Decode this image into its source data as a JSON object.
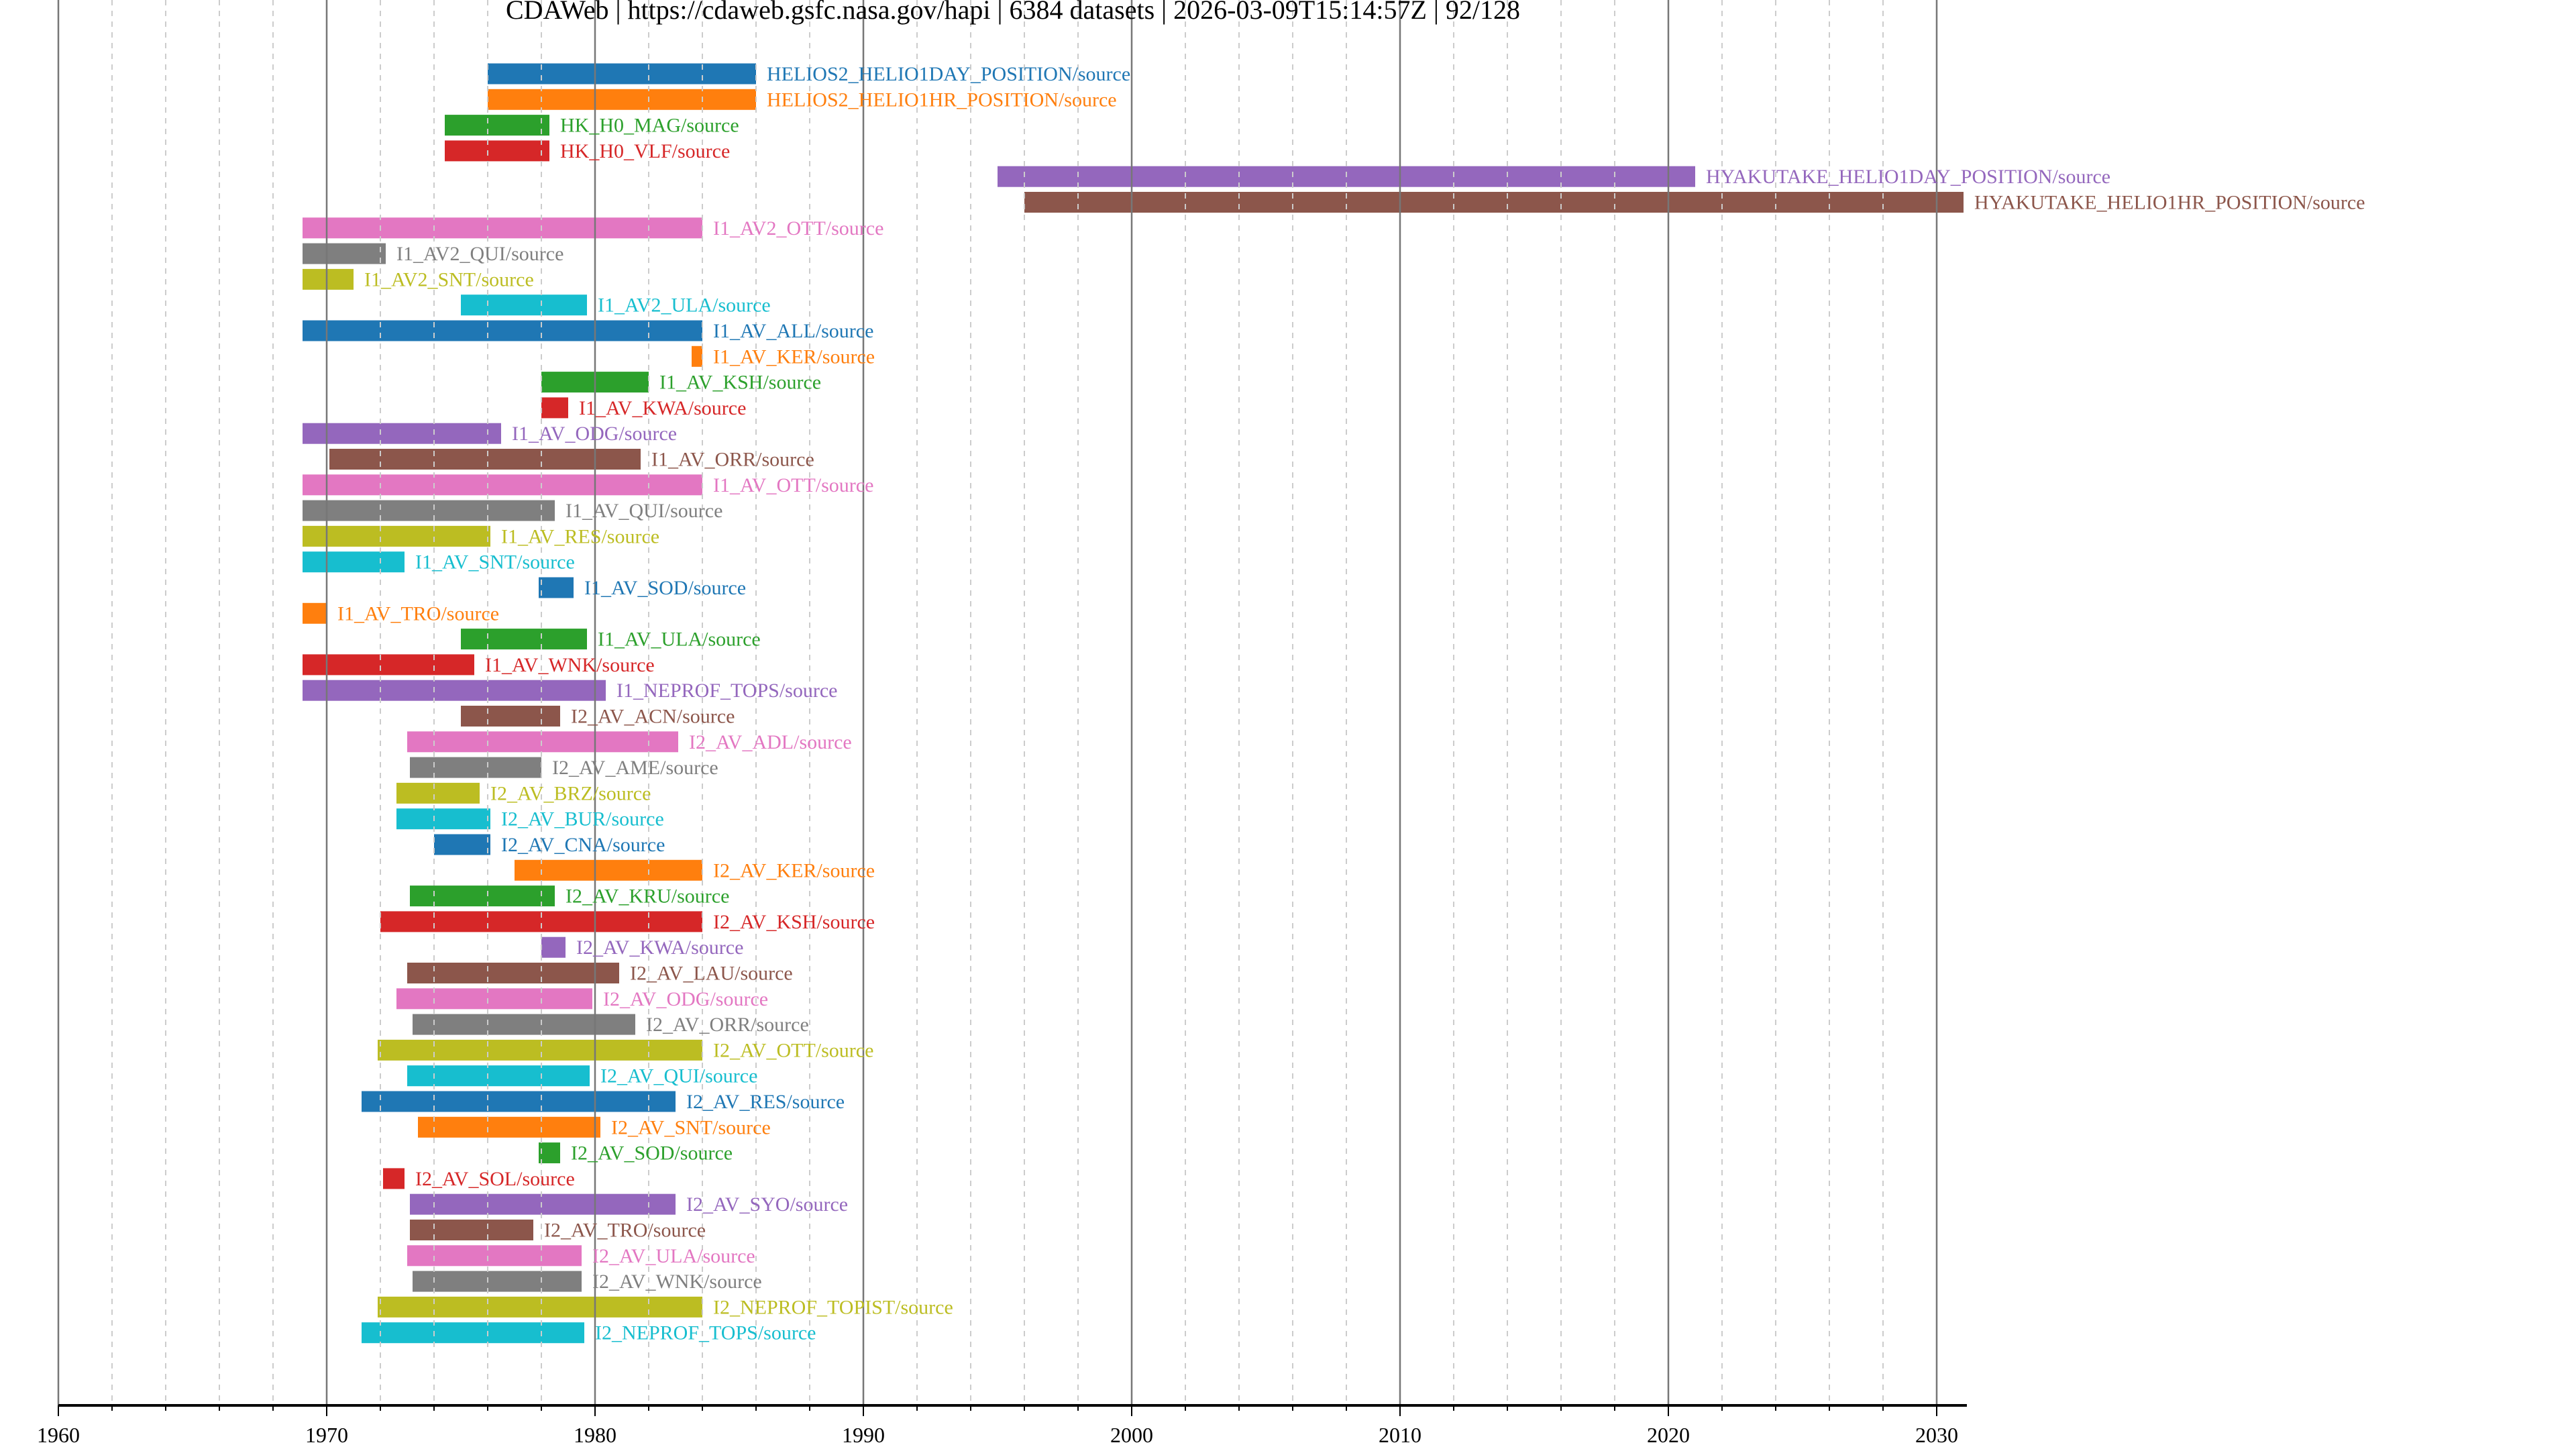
{
  "chart_data": {
    "type": "bar",
    "orientation": "horizontal-timeline",
    "title": "CDAWeb | https://cdaweb.gsfc.nasa.gov/hapi | 6384 datasets | 2026-03-09T15:14:57Z | 92/128",
    "xlabel": "",
    "ylabel": "",
    "xlim": [
      1960,
      2031
    ],
    "xticks": [
      "1960",
      "1970",
      "1980",
      "1990",
      "2000",
      "2010",
      "2020",
      "2030"
    ],
    "grid": true,
    "palette": [
      "#1f77b4",
      "#ff7f0e",
      "#2ca02c",
      "#d62728",
      "#9467bd",
      "#8c564b",
      "#e377c2",
      "#7f7f7f",
      "#bcbd22",
      "#17becf"
    ],
    "series": [
      {
        "name": "HELIOS2_HELIO1DAY_POSITION/source",
        "start": 1976.0,
        "end": 1986.0
      },
      {
        "name": "HELIOS2_HELIO1HR_POSITION/source",
        "start": 1976.0,
        "end": 1986.0
      },
      {
        "name": "HK_H0_MAG/source",
        "start": 1974.4,
        "end": 1978.3
      },
      {
        "name": "HK_H0_VLF/source",
        "start": 1974.4,
        "end": 1978.3
      },
      {
        "name": "HYAKUTAKE_HELIO1DAY_POSITION/source",
        "start": 1995.0,
        "end": 2021.0
      },
      {
        "name": "HYAKUTAKE_HELIO1HR_POSITION/source",
        "start": 1996.0,
        "end": 2031.0
      },
      {
        "name": "I1_AV2_OTT/source",
        "start": 1969.1,
        "end": 1984.0
      },
      {
        "name": "I1_AV2_QUI/source",
        "start": 1969.1,
        "end": 1972.2
      },
      {
        "name": "I1_AV2_SNT/source",
        "start": 1969.1,
        "end": 1971.0
      },
      {
        "name": "I1_AV2_ULA/source",
        "start": 1975.0,
        "end": 1979.7
      },
      {
        "name": "I1_AV_ALL/source",
        "start": 1969.1,
        "end": 1984.0
      },
      {
        "name": "I1_AV_KER/source",
        "start": 1983.6,
        "end": 1984.0
      },
      {
        "name": "I1_AV_KSH/source",
        "start": 1978.0,
        "end": 1982.0
      },
      {
        "name": "I1_AV_KWA/source",
        "start": 1978.0,
        "end": 1979.0
      },
      {
        "name": "I1_AV_ODG/source",
        "start": 1969.1,
        "end": 1976.5
      },
      {
        "name": "I1_AV_ORR/source",
        "start": 1970.1,
        "end": 1981.7
      },
      {
        "name": "I1_AV_OTT/source",
        "start": 1969.1,
        "end": 1984.0
      },
      {
        "name": "I1_AV_QUI/source",
        "start": 1969.1,
        "end": 1978.5
      },
      {
        "name": "I1_AV_RES/source",
        "start": 1969.1,
        "end": 1976.1
      },
      {
        "name": "I1_AV_SNT/source",
        "start": 1969.1,
        "end": 1972.9
      },
      {
        "name": "I1_AV_SOD/source",
        "start": 1977.9,
        "end": 1979.2
      },
      {
        "name": "I1_AV_TRO/source",
        "start": 1969.1,
        "end": 1970.0
      },
      {
        "name": "I1_AV_ULA/source",
        "start": 1975.0,
        "end": 1979.7
      },
      {
        "name": "I1_AV_WNK/source",
        "start": 1969.1,
        "end": 1975.5
      },
      {
        "name": "I1_NEPROF_TOPS/source",
        "start": 1969.1,
        "end": 1980.4
      },
      {
        "name": "I2_AV_ACN/source",
        "start": 1975.0,
        "end": 1978.7
      },
      {
        "name": "I2_AV_ADL/source",
        "start": 1973.0,
        "end": 1983.1
      },
      {
        "name": "I2_AV_AME/source",
        "start": 1973.1,
        "end": 1978.0
      },
      {
        "name": "I2_AV_BRZ/source",
        "start": 1972.6,
        "end": 1975.7
      },
      {
        "name": "I2_AV_BUR/source",
        "start": 1972.6,
        "end": 1976.1
      },
      {
        "name": "I2_AV_CNA/source",
        "start": 1974.0,
        "end": 1976.1
      },
      {
        "name": "I2_AV_KER/source",
        "start": 1977.0,
        "end": 1984.0
      },
      {
        "name": "I2_AV_KRU/source",
        "start": 1973.1,
        "end": 1978.5
      },
      {
        "name": "I2_AV_KSH/source",
        "start": 1972.0,
        "end": 1984.0
      },
      {
        "name": "I2_AV_KWA/source",
        "start": 1978.0,
        "end": 1978.9
      },
      {
        "name": "I2_AV_LAU/source",
        "start": 1973.0,
        "end": 1980.9
      },
      {
        "name": "I2_AV_ODG/source",
        "start": 1972.6,
        "end": 1979.9
      },
      {
        "name": "I2_AV_ORR/source",
        "start": 1973.2,
        "end": 1981.5
      },
      {
        "name": "I2_AV_OTT/source",
        "start": 1971.9,
        "end": 1984.0
      },
      {
        "name": "I2_AV_QUI/source",
        "start": 1973.0,
        "end": 1979.8
      },
      {
        "name": "I2_AV_RES/source",
        "start": 1971.3,
        "end": 1983.0
      },
      {
        "name": "I2_AV_SNT/source",
        "start": 1973.4,
        "end": 1980.2
      },
      {
        "name": "I2_AV_SOD/source",
        "start": 1977.9,
        "end": 1978.7
      },
      {
        "name": "I2_AV_SOL/source",
        "start": 1972.1,
        "end": 1972.9
      },
      {
        "name": "I2_AV_SYO/source",
        "start": 1973.1,
        "end": 1983.0
      },
      {
        "name": "I2_AV_TRO/source",
        "start": 1973.1,
        "end": 1977.7
      },
      {
        "name": "I2_AV_ULA/source",
        "start": 1973.0,
        "end": 1979.5
      },
      {
        "name": "I2_AV_WNK/source",
        "start": 1973.2,
        "end": 1979.5
      },
      {
        "name": "I2_NEPROF_TOPIST/source",
        "start": 1971.9,
        "end": 1984.0
      },
      {
        "name": "I2_NEPROF_TOPS/source",
        "start": 1971.3,
        "end": 1979.6
      }
    ]
  }
}
